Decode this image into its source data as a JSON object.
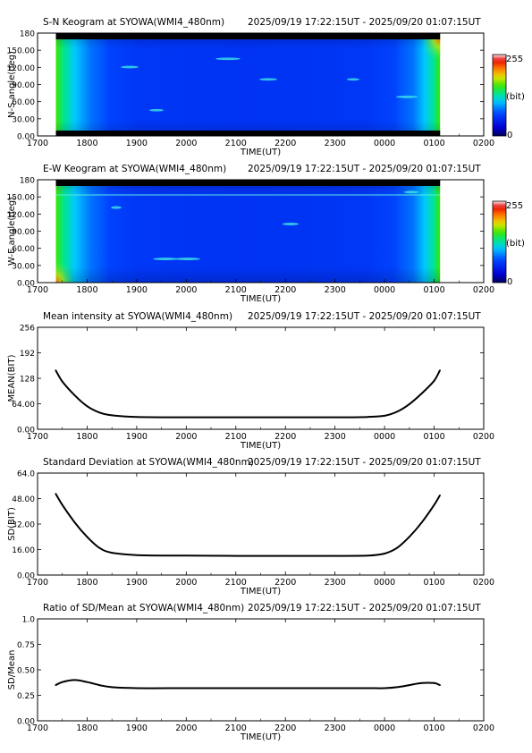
{
  "station_range": "2025/09/19 17:22:15UT - 2025/09/20 01:07:15UT",
  "time_axis": {
    "label": "TIME(UT)",
    "tick_labels": [
      "1700",
      "1800",
      "1900",
      "2000",
      "2100",
      "2200",
      "2300",
      "0000",
      "0100",
      "0200"
    ]
  },
  "colorbar": {
    "top_label": "255",
    "mid_label": "(bit)",
    "bottom_label": "0"
  },
  "chart_data": [
    {
      "type": "heatmap",
      "title": "S-N Keogram at SYOWA(WMI4_480nm)",
      "ylabel": "N-S angle(deg)",
      "xlabel": "TIME(UT)",
      "ylim": [
        0,
        180
      ],
      "y_ticks": [
        "0.00",
        "30.00",
        "60.00",
        "90.00",
        "120.00",
        "150.00",
        "180"
      ],
      "x_ticks": [
        "1700",
        "1800",
        "1900",
        "2000",
        "2100",
        "2200",
        "2300",
        "0000",
        "0100",
        "0200"
      ],
      "data_range_hours": [
        0.37,
        8.12
      ],
      "color_scale": [
        0,
        255
      ],
      "colorbar_label": "(bit)"
    },
    {
      "type": "heatmap",
      "title": "E-W Keogram at SYOWA(WMI4_480nm)",
      "ylabel": "W-E angle(deg)",
      "xlabel": "TIME(UT)",
      "ylim": [
        0,
        180
      ],
      "y_ticks": [
        "0.00",
        "30.00",
        "60.00",
        "90.00",
        "120.00",
        "150.00",
        "180"
      ],
      "x_ticks": [
        "1700",
        "1800",
        "1900",
        "2000",
        "2100",
        "2200",
        "2300",
        "0000",
        "0100",
        "0200"
      ],
      "data_range_hours": [
        0.37,
        8.12
      ],
      "color_scale": [
        0,
        255
      ],
      "colorbar_label": "(bit)"
    },
    {
      "type": "line",
      "title": "Mean intensity at SYOWA(WMI4_480nm)",
      "ylabel": "MEAN(BIT)",
      "xlabel": "TIME(UT)",
      "ylim": [
        0,
        256
      ],
      "y_ticks": [
        "0.00",
        "64.00",
        "128",
        "192",
        "256"
      ],
      "x_ticks": [
        "1700",
        "1800",
        "1900",
        "2000",
        "2100",
        "2200",
        "2300",
        "0000",
        "0100",
        "0200"
      ],
      "x": [
        "17:22",
        "17:30",
        "17:45",
        "18:00",
        "18:15",
        "18:30",
        "19:00",
        "20:00",
        "21:00",
        "22:00",
        "23:00",
        "23:40",
        "00:00",
        "00:15",
        "00:30",
        "00:45",
        "01:00",
        "01:07"
      ],
      "values": [
        148,
        120,
        85,
        58,
        42,
        35,
        31,
        30,
        30,
        30,
        30,
        31,
        34,
        44,
        63,
        90,
        122,
        148
      ]
    },
    {
      "type": "line",
      "title": "Standard Deviation at SYOWA(WMI4_480nm)",
      "ylabel": "SD(BIT)",
      "xlabel": "TIME(UT)",
      "ylim": [
        0,
        64
      ],
      "y_ticks": [
        "0.00",
        "16.00",
        "32.00",
        "48.00",
        "64.0"
      ],
      "x_ticks": [
        "1700",
        "1800",
        "1900",
        "2000",
        "2100",
        "2200",
        "2300",
        "0000",
        "0100",
        "0200"
      ],
      "x": [
        "17:22",
        "17:30",
        "17:45",
        "18:00",
        "18:15",
        "18:30",
        "19:00",
        "20:00",
        "21:00",
        "22:00",
        "23:00",
        "23:40",
        "00:00",
        "00:15",
        "00:30",
        "00:45",
        "01:00",
        "01:07"
      ],
      "values": [
        51,
        44,
        33,
        24,
        17,
        14,
        12.5,
        12.2,
        12,
        12,
        12,
        12.2,
        13.5,
        17,
        24,
        33,
        44,
        50
      ]
    },
    {
      "type": "line",
      "title": "Ratio of SD/Mean at SYOWA(WMI4_480nm)",
      "ylabel": "SD/Mean",
      "xlabel": "TIME(UT)",
      "ylim": [
        0,
        1
      ],
      "y_ticks": [
        "0.00",
        "0.25",
        "0.50",
        "0.75",
        "1.0"
      ],
      "x_ticks": [
        "1700",
        "1800",
        "1900",
        "2000",
        "2100",
        "2200",
        "2300",
        "0000",
        "0100",
        "0200"
      ],
      "x": [
        "17:22",
        "17:30",
        "17:45",
        "18:00",
        "18:15",
        "18:30",
        "19:00",
        "20:00",
        "21:00",
        "22:00",
        "23:00",
        "23:40",
        "00:00",
        "00:15",
        "00:30",
        "00:45",
        "01:00",
        "01:07"
      ],
      "values": [
        0.35,
        0.38,
        0.4,
        0.38,
        0.35,
        0.33,
        0.32,
        0.32,
        0.32,
        0.32,
        0.32,
        0.32,
        0.32,
        0.33,
        0.35,
        0.37,
        0.37,
        0.35
      ]
    }
  ]
}
